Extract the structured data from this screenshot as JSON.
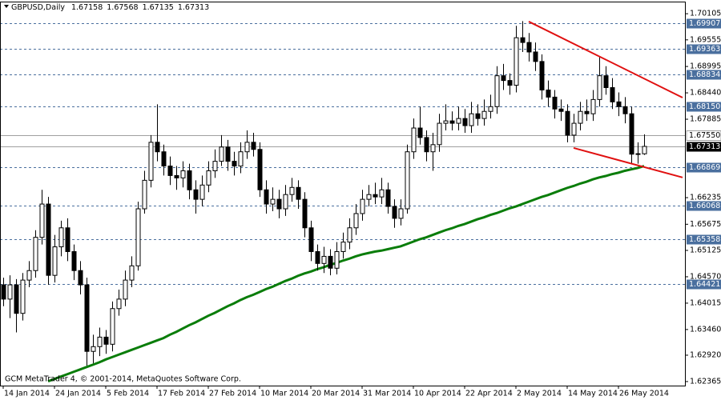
{
  "chart_data": {
    "type": "candlestick",
    "title": "GBPUSD,Daily",
    "footer": "GCM MetaTrader 4, © 2001-2014, MetaQuotes Software Corp.",
    "categories": [
      "14 Jan 2014",
      null,
      null,
      null,
      null,
      null,
      null,
      null,
      "24 Jan 2014",
      null,
      null,
      null,
      null,
      null,
      null,
      null,
      "5 Feb 2014",
      null,
      null,
      null,
      null,
      null,
      null,
      null,
      "17 Feb 2014",
      null,
      null,
      null,
      null,
      null,
      null,
      null,
      "27 Feb 2014",
      null,
      null,
      null,
      null,
      null,
      null,
      null,
      "10 Mar 2014",
      null,
      null,
      null,
      null,
      null,
      null,
      null,
      "20 Mar 2014",
      null,
      null,
      null,
      null,
      null,
      null,
      null,
      "31 Mar 2014",
      null,
      null,
      null,
      null,
      null,
      null,
      null,
      "10 Apr 2014",
      null,
      null,
      null,
      null,
      null,
      null,
      null,
      "22 Apr 2014",
      null,
      null,
      null,
      null,
      null,
      null,
      null,
      "2 May 2014",
      null,
      null,
      null,
      null,
      null,
      null,
      null,
      "14 May 2014",
      null,
      null,
      null,
      null,
      null,
      null,
      null,
      "26 May 2014",
      null,
      null,
      null,
      null
    ],
    "open": [
      1.644,
      1.641,
      1.644,
      1.638,
      1.645,
      1.647,
      1.654,
      1.661,
      1.646,
      1.652,
      1.656,
      1.651,
      1.647,
      1.644,
      1.63,
      1.631,
      1.633,
      1.6315,
      1.639,
      1.641,
      1.645,
      1.648,
      1.66,
      1.666,
      1.674,
      1.672,
      1.669,
      1.667,
      1.6665,
      1.668,
      1.664,
      1.662,
      1.665,
      1.668,
      1.67,
      1.673,
      1.67,
      1.669,
      1.672,
      1.674,
      1.6725,
      1.664,
      1.661,
      1.662,
      1.66,
      1.663,
      1.6645,
      1.662,
      1.656,
      1.651,
      1.6485,
      1.65,
      1.6475,
      1.651,
      1.653,
      1.656,
      1.659,
      1.662,
      1.663,
      1.6625,
      1.664,
      1.6605,
      1.658,
      1.66,
      1.672,
      1.677,
      1.675,
      1.672,
      1.6735,
      1.678,
      1.6785,
      1.678,
      1.679,
      1.6775,
      1.68,
      1.679,
      1.6805,
      1.6815,
      1.688,
      1.687,
      1.686,
      1.696,
      1.695,
      1.693,
      1.691,
      1.685,
      1.6835,
      1.681,
      1.6805,
      1.6755,
      1.678,
      1.6805,
      1.68,
      1.683,
      1.688,
      1.6855,
      1.6825,
      1.6815,
      1.68,
      1.6715,
      1.67158
    ],
    "high": [
      1.6455,
      1.646,
      1.6452,
      1.6465,
      1.649,
      1.6555,
      1.664,
      1.6625,
      1.6545,
      1.6575,
      1.658,
      1.6525,
      1.649,
      1.6455,
      1.6335,
      1.635,
      1.6345,
      1.6405,
      1.643,
      1.647,
      1.65,
      1.6615,
      1.668,
      1.6755,
      1.682,
      1.6735,
      1.671,
      1.669,
      1.67,
      1.6695,
      1.666,
      1.667,
      1.67,
      1.6725,
      1.6755,
      1.6745,
      1.672,
      1.674,
      1.6765,
      1.676,
      1.674,
      1.666,
      1.6645,
      1.664,
      1.665,
      1.6665,
      1.666,
      1.6635,
      1.6575,
      1.6525,
      1.652,
      1.6515,
      1.653,
      1.655,
      1.658,
      1.661,
      1.664,
      1.665,
      1.6655,
      1.6665,
      1.6655,
      1.662,
      1.662,
      1.6735,
      1.679,
      1.6815,
      1.6765,
      1.676,
      1.68,
      1.682,
      1.6805,
      1.6815,
      1.681,
      1.6825,
      1.682,
      1.683,
      1.684,
      1.69,
      1.6905,
      1.6885,
      1.6985,
      1.6995,
      1.697,
      1.695,
      1.6925,
      1.687,
      1.685,
      1.683,
      1.682,
      1.68,
      1.6825,
      1.683,
      1.685,
      1.692,
      1.69,
      1.6875,
      1.6845,
      1.6835,
      1.6815,
      1.674,
      1.67568
    ],
    "low": [
      1.6395,
      1.637,
      1.634,
      1.6365,
      1.6435,
      1.6455,
      1.6525,
      1.644,
      1.6445,
      1.65,
      1.649,
      1.645,
      1.642,
      1.627,
      1.6275,
      1.629,
      1.6295,
      1.63,
      1.6375,
      1.6395,
      1.6435,
      1.647,
      1.659,
      1.6645,
      1.67,
      1.667,
      1.665,
      1.664,
      1.6645,
      1.662,
      1.659,
      1.6605,
      1.6635,
      1.6665,
      1.669,
      1.668,
      1.667,
      1.6675,
      1.6705,
      1.671,
      1.6625,
      1.659,
      1.6595,
      1.658,
      1.6585,
      1.6615,
      1.66,
      1.654,
      1.649,
      1.647,
      1.6465,
      1.646,
      1.6462,
      1.6495,
      1.6515,
      1.6545,
      1.6575,
      1.6605,
      1.661,
      1.661,
      1.659,
      1.656,
      1.6565,
      1.659,
      1.6705,
      1.6735,
      1.67,
      1.668,
      1.672,
      1.6765,
      1.6765,
      1.6765,
      1.676,
      1.676,
      1.6775,
      1.6775,
      1.679,
      1.68,
      1.685,
      1.684,
      1.6845,
      1.693,
      1.691,
      1.689,
      1.683,
      1.6815,
      1.679,
      1.6785,
      1.674,
      1.674,
      1.6765,
      1.6785,
      1.6785,
      1.6815,
      1.684,
      1.681,
      1.6795,
      1.678,
      1.6695,
      1.6695,
      1.67135
    ],
    "close": [
      1.641,
      1.644,
      1.638,
      1.645,
      1.647,
      1.654,
      1.661,
      1.646,
      1.652,
      1.656,
      1.651,
      1.647,
      1.644,
      1.63,
      1.631,
      1.633,
      1.6315,
      1.639,
      1.641,
      1.645,
      1.648,
      1.66,
      1.666,
      1.674,
      1.672,
      1.669,
      1.667,
      1.6665,
      1.668,
      1.664,
      1.662,
      1.665,
      1.668,
      1.67,
      1.673,
      1.67,
      1.669,
      1.672,
      1.674,
      1.6725,
      1.664,
      1.661,
      1.662,
      1.66,
      1.663,
      1.6645,
      1.662,
      1.656,
      1.651,
      1.6485,
      1.65,
      1.6475,
      1.651,
      1.653,
      1.656,
      1.659,
      1.662,
      1.663,
      1.6625,
      1.664,
      1.6605,
      1.658,
      1.66,
      1.672,
      1.677,
      1.675,
      1.672,
      1.6735,
      1.678,
      1.6785,
      1.678,
      1.679,
      1.6775,
      1.68,
      1.679,
      1.6805,
      1.6815,
      1.688,
      1.687,
      1.686,
      1.696,
      1.695,
      1.693,
      1.691,
      1.685,
      1.6835,
      1.681,
      1.6805,
      1.6755,
      1.678,
      1.6805,
      1.68,
      1.683,
      1.688,
      1.6855,
      1.6825,
      1.6815,
      1.68,
      1.6715,
      1.6716,
      1.67313
    ],
    "ma": {
      "color": "#0a7d0a",
      "values": [
        null,
        null,
        null,
        null,
        null,
        null,
        null,
        1.6237,
        1.6242,
        1.6247,
        1.6252,
        1.6257,
        1.6262,
        1.6267,
        1.6272,
        1.6277,
        1.6283,
        1.6288,
        1.6293,
        1.6298,
        1.6303,
        1.6308,
        1.6313,
        1.6318,
        1.6323,
        1.6328,
        1.6335,
        1.6341,
        1.6348,
        1.6355,
        1.6361,
        1.6368,
        1.6375,
        1.6381,
        1.6388,
        1.6395,
        1.6401,
        1.6408,
        1.6414,
        1.6419,
        1.6425,
        1.6431,
        1.6436,
        1.6442,
        1.6448,
        1.6453,
        1.6459,
        1.6464,
        1.6468,
        1.6473,
        1.6477,
        1.6482,
        1.6486,
        1.6491,
        1.6495,
        1.65,
        1.6504,
        1.6507,
        1.651,
        1.6512,
        1.6515,
        1.6518,
        1.6521,
        1.6526,
        1.6531,
        1.6536,
        1.654,
        1.6545,
        1.655,
        1.6555,
        1.6559,
        1.6564,
        1.6568,
        1.6573,
        1.6578,
        1.6582,
        1.6587,
        1.6591,
        1.6596,
        1.6601,
        1.6605,
        1.661,
        1.6615,
        1.662,
        1.6625,
        1.6629,
        1.6634,
        1.6639,
        1.6644,
        1.6648,
        1.6653,
        1.6657,
        1.6662,
        1.6666,
        1.6669,
        1.6673,
        1.6676,
        1.668,
        1.6683,
        1.6686,
        1.669
      ]
    },
    "trendlines": [
      {
        "color": "#e01010",
        "x": [
          82,
          106
        ],
        "y": [
          1.6994,
          1.6834
        ]
      },
      {
        "color": "#e01010",
        "x": [
          89,
          106
        ],
        "y": [
          1.6728,
          1.6666
        ]
      }
    ],
    "levels": [
      1.69907,
      1.69363,
      1.68834,
      {
        "value": 1.6815,
        "label": "1.68150"
      },
      1.66869,
      1.66068,
      1.65358,
      1.64421
    ],
    "level_color": "#4a6f9e",
    "ask_line": {
      "value": 1.6755,
      "label": "1.67550"
    },
    "ylim": [
      1.6228,
      1.7036
    ],
    "yticks": [
      1.70105,
      1.69555,
      1.68995,
      {
        "value": 1.6844,
        "label": "1.68440"
      },
      1.67885,
      1.66235,
      1.65675,
      1.65125,
      {
        "value": 1.6457,
        "label": "1.64570"
      },
      1.64015,
      {
        "value": 1.6346,
        "label": "1.63460"
      },
      {
        "value": 1.6292,
        "label": "1.62920"
      },
      1.62365
    ]
  }
}
